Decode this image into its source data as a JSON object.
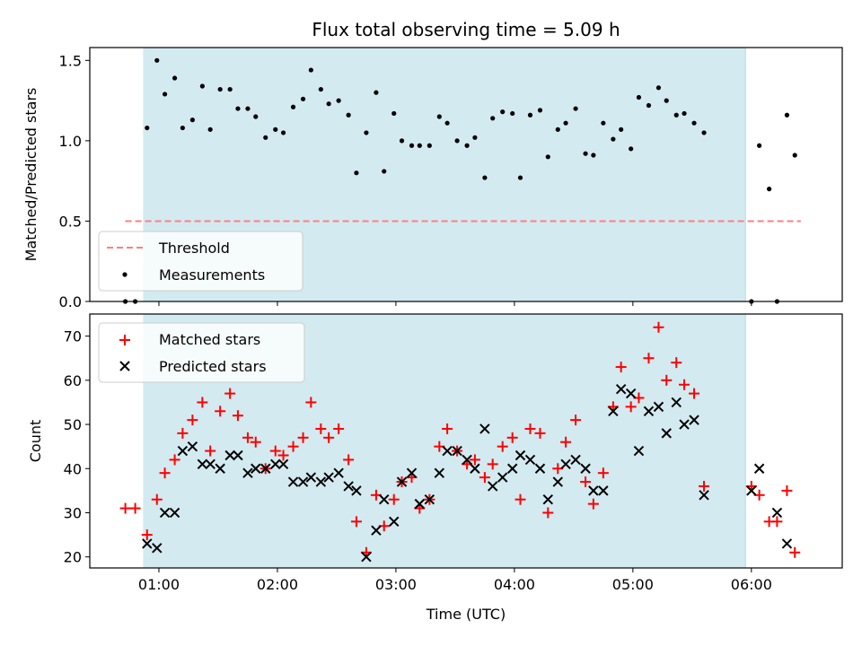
{
  "chart_data": [
    {
      "type": "scatter",
      "title": "Flux total observing time = 5.09 h",
      "xlabel": "",
      "ylabel": "Matched/Predicted stars",
      "x_ticks": [
        "01:00",
        "02:00",
        "03:00",
        "04:00",
        "05:00",
        "06:00"
      ],
      "ylim": [
        0,
        1.58
      ],
      "y_ticks": [
        "0.0",
        "0.5",
        "1.0",
        "1.5"
      ],
      "y_tick_values": [
        0,
        0.5,
        1.0,
        1.5
      ],
      "shaded_span": [
        "00:52",
        "05:57"
      ],
      "shade_color": "#d3eaf0",
      "legend_position": "lower-left",
      "threshold": {
        "name": "Threshold",
        "value": 0.5,
        "x_range": [
          "00:43",
          "06:25"
        ],
        "color": "#ff7f7f",
        "style": "dashed"
      },
      "series": [
        {
          "name": "Measurements",
          "marker": "dot",
          "color": "#000000",
          "points": [
            [
              "00:43",
              0.0
            ],
            [
              "00:48",
              0.0
            ],
            [
              "00:54",
              1.08
            ],
            [
              "00:59",
              1.5
            ],
            [
              "01:03",
              1.29
            ],
            [
              "01:08",
              1.39
            ],
            [
              "01:12",
              1.08
            ],
            [
              "01:17",
              1.13
            ],
            [
              "01:22",
              1.34
            ],
            [
              "01:26",
              1.07
            ],
            [
              "01:31",
              1.32
            ],
            [
              "01:36",
              1.32
            ],
            [
              "01:40",
              1.2
            ],
            [
              "01:45",
              1.2
            ],
            [
              "01:49",
              1.15
            ],
            [
              "01:54",
              1.02
            ],
            [
              "01:59",
              1.07
            ],
            [
              "02:03",
              1.05
            ],
            [
              "02:08",
              1.21
            ],
            [
              "02:13",
              1.26
            ],
            [
              "02:17",
              1.44
            ],
            [
              "02:22",
              1.32
            ],
            [
              "02:26",
              1.23
            ],
            [
              "02:31",
              1.25
            ],
            [
              "02:36",
              1.16
            ],
            [
              "02:40",
              0.8
            ],
            [
              "02:45",
              1.05
            ],
            [
              "02:50",
              1.3
            ],
            [
              "02:54",
              0.81
            ],
            [
              "02:59",
              1.17
            ],
            [
              "03:03",
              1.0
            ],
            [
              "03:08",
              0.97
            ],
            [
              "03:12",
              0.97
            ],
            [
              "03:17",
              0.97
            ],
            [
              "03:22",
              1.15
            ],
            [
              "03:26",
              1.11
            ],
            [
              "03:31",
              1.0
            ],
            [
              "03:36",
              0.97
            ],
            [
              "03:40",
              1.02
            ],
            [
              "03:45",
              0.77
            ],
            [
              "03:49",
              1.14
            ],
            [
              "03:54",
              1.18
            ],
            [
              "03:59",
              1.17
            ],
            [
              "04:03",
              0.77
            ],
            [
              "04:08",
              1.16
            ],
            [
              "04:13",
              1.19
            ],
            [
              "04:17",
              0.9
            ],
            [
              "04:22",
              1.07
            ],
            [
              "04:26",
              1.11
            ],
            [
              "04:31",
              1.2
            ],
            [
              "04:36",
              0.92
            ],
            [
              "04:40",
              0.91
            ],
            [
              "04:45",
              1.11
            ],
            [
              "04:50",
              1.01
            ],
            [
              "04:54",
              1.07
            ],
            [
              "04:59",
              0.95
            ],
            [
              "05:03",
              1.27
            ],
            [
              "05:08",
              1.22
            ],
            [
              "05:13",
              1.33
            ],
            [
              "05:17",
              1.25
            ],
            [
              "05:22",
              1.16
            ],
            [
              "05:26",
              1.17
            ],
            [
              "05:31",
              1.11
            ],
            [
              "05:36",
              1.05
            ],
            [
              "06:00",
              0.0
            ],
            [
              "06:04",
              0.97
            ],
            [
              "06:09",
              0.7
            ],
            [
              "06:13",
              0.0
            ],
            [
              "06:18",
              1.16
            ],
            [
              "06:22",
              0.91
            ]
          ]
        }
      ]
    },
    {
      "type": "scatter",
      "title": "",
      "xlabel": "Time (UTC)",
      "ylabel": "Count",
      "x_ticks": [
        "01:00",
        "02:00",
        "03:00",
        "04:00",
        "05:00",
        "06:00"
      ],
      "ylim": [
        17.5,
        75
      ],
      "y_ticks": [
        "20",
        "30",
        "40",
        "50",
        "60",
        "70"
      ],
      "y_tick_values": [
        20,
        30,
        40,
        50,
        60,
        70
      ],
      "shaded_span": [
        "00:52",
        "05:57"
      ],
      "shade_color": "#d3eaf0",
      "legend_position": "upper-left",
      "series": [
        {
          "name": "Matched stars",
          "marker": "plus",
          "color": "#ff0000",
          "points": [
            [
              "00:43",
              31
            ],
            [
              "00:48",
              31
            ],
            [
              "00:54",
              25
            ],
            [
              "00:59",
              33
            ],
            [
              "01:03",
              39
            ],
            [
              "01:08",
              42
            ],
            [
              "01:12",
              48
            ],
            [
              "01:17",
              51
            ],
            [
              "01:22",
              55
            ],
            [
              "01:26",
              44
            ],
            [
              "01:31",
              53
            ],
            [
              "01:36",
              57
            ],
            [
              "01:40",
              52
            ],
            [
              "01:45",
              47
            ],
            [
              "01:49",
              46
            ],
            [
              "01:54",
              40
            ],
            [
              "01:59",
              44
            ],
            [
              "02:03",
              43
            ],
            [
              "02:08",
              45
            ],
            [
              "02:13",
              47
            ],
            [
              "02:17",
              55
            ],
            [
              "02:22",
              49
            ],
            [
              "02:26",
              47
            ],
            [
              "02:31",
              49
            ],
            [
              "02:36",
              42
            ],
            [
              "02:40",
              28
            ],
            [
              "02:45",
              21
            ],
            [
              "02:50",
              34
            ],
            [
              "02:54",
              27
            ],
            [
              "02:59",
              33
            ],
            [
              "03:03",
              37
            ],
            [
              "03:08",
              38
            ],
            [
              "03:12",
              31
            ],
            [
              "03:17",
              33
            ],
            [
              "03:22",
              45
            ],
            [
              "03:26",
              49
            ],
            [
              "03:31",
              44
            ],
            [
              "03:36",
              41
            ],
            [
              "03:40",
              42
            ],
            [
              "03:45",
              38
            ],
            [
              "03:49",
              41
            ],
            [
              "03:54",
              45
            ],
            [
              "03:59",
              47
            ],
            [
              "04:03",
              33
            ],
            [
              "04:08",
              49
            ],
            [
              "04:13",
              48
            ],
            [
              "04:17",
              30
            ],
            [
              "04:22",
              40
            ],
            [
              "04:26",
              46
            ],
            [
              "04:31",
              51
            ],
            [
              "04:36",
              37
            ],
            [
              "04:40",
              32
            ],
            [
              "04:45",
              39
            ],
            [
              "04:50",
              54
            ],
            [
              "04:54",
              63
            ],
            [
              "04:59",
              54
            ],
            [
              "05:03",
              56
            ],
            [
              "05:08",
              65
            ],
            [
              "05:13",
              72
            ],
            [
              "05:17",
              60
            ],
            [
              "05:22",
              64
            ],
            [
              "05:26",
              59
            ],
            [
              "05:31",
              57
            ],
            [
              "05:36",
              36
            ],
            [
              "06:00",
              36
            ],
            [
              "06:04",
              34
            ],
            [
              "06:09",
              28
            ],
            [
              "06:13",
              28
            ],
            [
              "06:18",
              35
            ],
            [
              "06:22",
              21
            ]
          ]
        },
        {
          "name": "Predicted stars",
          "marker": "x",
          "color": "#000000",
          "points": [
            [
              "00:54",
              23
            ],
            [
              "00:59",
              22
            ],
            [
              "01:03",
              30
            ],
            [
              "01:08",
              30
            ],
            [
              "01:12",
              44
            ],
            [
              "01:17",
              45
            ],
            [
              "01:22",
              41
            ],
            [
              "01:26",
              41
            ],
            [
              "01:31",
              40
            ],
            [
              "01:36",
              43
            ],
            [
              "01:40",
              43
            ],
            [
              "01:45",
              39
            ],
            [
              "01:49",
              40
            ],
            [
              "01:54",
              40
            ],
            [
              "01:59",
              41
            ],
            [
              "02:03",
              41
            ],
            [
              "02:08",
              37
            ],
            [
              "02:13",
              37
            ],
            [
              "02:17",
              38
            ],
            [
              "02:22",
              37
            ],
            [
              "02:26",
              38
            ],
            [
              "02:31",
              39
            ],
            [
              "02:36",
              36
            ],
            [
              "02:40",
              35
            ],
            [
              "02:45",
              20
            ],
            [
              "02:50",
              26
            ],
            [
              "02:54",
              33
            ],
            [
              "02:59",
              28
            ],
            [
              "03:03",
              37
            ],
            [
              "03:08",
              39
            ],
            [
              "03:12",
              32
            ],
            [
              "03:17",
              33
            ],
            [
              "03:22",
              39
            ],
            [
              "03:26",
              44
            ],
            [
              "03:31",
              44
            ],
            [
              "03:36",
              42
            ],
            [
              "03:40",
              40
            ],
            [
              "03:45",
              49
            ],
            [
              "03:49",
              36
            ],
            [
              "03:54",
              38
            ],
            [
              "03:59",
              40
            ],
            [
              "04:03",
              43
            ],
            [
              "04:08",
              42
            ],
            [
              "04:13",
              40
            ],
            [
              "04:17",
              33
            ],
            [
              "04:22",
              37
            ],
            [
              "04:26",
              41
            ],
            [
              "04:31",
              42
            ],
            [
              "04:36",
              40
            ],
            [
              "04:40",
              35
            ],
            [
              "04:45",
              35
            ],
            [
              "04:50",
              53
            ],
            [
              "04:54",
              58
            ],
            [
              "04:59",
              57
            ],
            [
              "05:03",
              44
            ],
            [
              "05:08",
              53
            ],
            [
              "05:13",
              54
            ],
            [
              "05:17",
              48
            ],
            [
              "05:22",
              55
            ],
            [
              "05:26",
              50
            ],
            [
              "05:31",
              51
            ],
            [
              "05:36",
              34
            ],
            [
              "06:00",
              35
            ],
            [
              "06:04",
              40
            ],
            [
              "06:13",
              30
            ],
            [
              "06:18",
              23
            ]
          ]
        }
      ]
    }
  ]
}
